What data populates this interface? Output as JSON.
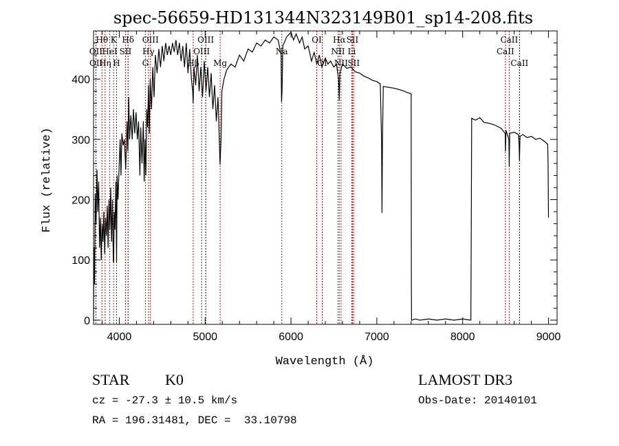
{
  "chart_data": {
    "type": "line",
    "title": "spec-56659-HD131344N323149B01_sp14-208.fits",
    "xlabel": "Wavelength (Å)",
    "ylabel": "Flux (relative)",
    "xlim": [
      3700,
      9100
    ],
    "ylim": [
      -7,
      480
    ],
    "xticks": [
      4000,
      5000,
      6000,
      7000,
      8000,
      9000
    ],
    "yticks": [
      0,
      100,
      200,
      300,
      400
    ],
    "grid": false,
    "series": [
      {
        "name": "spectrum",
        "color": "#000000",
        "points": [
          [
            3700,
            0
          ],
          [
            3705,
            120
          ],
          [
            3712,
            60
          ],
          [
            3720,
            210
          ],
          [
            3730,
            160
          ],
          [
            3740,
            250
          ],
          [
            3750,
            180
          ],
          [
            3760,
            230
          ],
          [
            3770,
            120
          ],
          [
            3780,
            170
          ],
          [
            3790,
            100
          ],
          [
            3800,
            160
          ],
          [
            3810,
            130
          ],
          [
            3820,
            180
          ],
          [
            3830,
            110
          ],
          [
            3840,
            170
          ],
          [
            3850,
            140
          ],
          [
            3860,
            190
          ],
          [
            3870,
            120
          ],
          [
            3880,
            200
          ],
          [
            3890,
            150
          ],
          [
            3900,
            220
          ],
          [
            3910,
            130
          ],
          [
            3920,
            200
          ],
          [
            3930,
            100
          ],
          [
            3935,
            95
          ],
          [
            3940,
            180
          ],
          [
            3950,
            150
          ],
          [
            3960,
            230
          ],
          [
            3968,
            95
          ],
          [
            3975,
            240
          ],
          [
            3985,
            200
          ],
          [
            4000,
            260
          ],
          [
            4010,
            300
          ],
          [
            4020,
            240
          ],
          [
            4030,
            310
          ],
          [
            4045,
            290
          ],
          [
            4060,
            300
          ],
          [
            4075,
            250
          ],
          [
            4090,
            330
          ],
          [
            4100,
            280
          ],
          [
            4110,
            370
          ],
          [
            4120,
            300
          ],
          [
            4135,
            340
          ],
          [
            4150,
            300
          ],
          [
            4165,
            350
          ],
          [
            4180,
            310
          ],
          [
            4195,
            345
          ],
          [
            4210,
            300
          ],
          [
            4225,
            330
          ],
          [
            4240,
            240
          ],
          [
            4250,
            320
          ],
          [
            4265,
            260
          ],
          [
            4280,
            330
          ],
          [
            4290,
            230
          ],
          [
            4300,
            300
          ],
          [
            4310,
            240
          ],
          [
            4320,
            350
          ],
          [
            4330,
            320
          ],
          [
            4340,
            390
          ],
          [
            4350,
            310
          ],
          [
            4360,
            400
          ],
          [
            4375,
            350
          ],
          [
            4390,
            420
          ],
          [
            4405,
            370
          ],
          [
            4420,
            440
          ],
          [
            4440,
            410
          ],
          [
            4460,
            450
          ],
          [
            4480,
            420
          ],
          [
            4500,
            455
          ],
          [
            4520,
            430
          ],
          [
            4540,
            460
          ],
          [
            4560,
            440
          ],
          [
            4580,
            455
          ],
          [
            4600,
            440
          ],
          [
            4620,
            460
          ],
          [
            4640,
            445
          ],
          [
            4660,
            465
          ],
          [
            4680,
            440
          ],
          [
            4700,
            460
          ],
          [
            4720,
            430
          ],
          [
            4740,
            455
          ],
          [
            4760,
            420
          ],
          [
            4780,
            460
          ],
          [
            4800,
            410
          ],
          [
            4820,
            450
          ],
          [
            4840,
            400
          ],
          [
            4855,
            380
          ],
          [
            4861,
            360
          ],
          [
            4870,
            420
          ],
          [
            4890,
            390
          ],
          [
            4910,
            440
          ],
          [
            4930,
            380
          ],
          [
            4950,
            420
          ],
          [
            4970,
            370
          ],
          [
            4990,
            430
          ],
          [
            5010,
            380
          ],
          [
            5030,
            420
          ],
          [
            5050,
            370
          ],
          [
            5070,
            410
          ],
          [
            5090,
            350
          ],
          [
            5110,
            390
          ],
          [
            5130,
            330
          ],
          [
            5150,
            370
          ],
          [
            5167,
            290
          ],
          [
            5173,
            258
          ],
          [
            5185,
            300
          ],
          [
            5195,
            380
          ],
          [
            5220,
            400
          ],
          [
            5250,
            415
          ],
          [
            5300,
            425
          ],
          [
            5350,
            420
          ],
          [
            5400,
            440
          ],
          [
            5450,
            430
          ],
          [
            5500,
            450
          ],
          [
            5550,
            445
          ],
          [
            5600,
            460
          ],
          [
            5650,
            455
          ],
          [
            5700,
            465
          ],
          [
            5750,
            460
          ],
          [
            5800,
            470
          ],
          [
            5850,
            465
          ],
          [
            5885,
            440
          ],
          [
            5890,
            362
          ],
          [
            5896,
            380
          ],
          [
            5905,
            455
          ],
          [
            5950,
            470
          ],
          [
            6000,
            478
          ],
          [
            6030,
            465
          ],
          [
            6060,
            475
          ],
          [
            6100,
            460
          ],
          [
            6130,
            470
          ],
          [
            6160,
            450
          ],
          [
            6200,
            455
          ],
          [
            6240,
            430
          ],
          [
            6270,
            445
          ],
          [
            6300,
            425
          ],
          [
            6330,
            440
          ],
          [
            6360,
            420
          ],
          [
            6400,
            435
          ],
          [
            6430,
            425
          ],
          [
            6460,
            430
          ],
          [
            6500,
            420
          ],
          [
            6530,
            425
          ],
          [
            6555,
            400
          ],
          [
            6563,
            365
          ],
          [
            6570,
            410
          ],
          [
            6600,
            425
          ],
          [
            6650,
            418
          ],
          [
            6700,
            420
          ],
          [
            6750,
            412
          ],
          [
            6800,
            410
          ],
          [
            6850,
            405
          ],
          [
            6900,
            402
          ],
          [
            6950,
            398
          ],
          [
            7000,
            396
          ],
          [
            7040,
            392
          ],
          [
            7055,
            300
          ],
          [
            7060,
            178
          ],
          [
            7066,
            300
          ],
          [
            7075,
            388
          ],
          [
            7150,
            386
          ],
          [
            7200,
            385
          ],
          [
            7250,
            383
          ],
          [
            7300,
            381
          ],
          [
            7350,
            378
          ],
          [
            7395,
            376
          ],
          [
            7400,
            376
          ],
          [
            7402,
            60
          ],
          [
            7405,
            0
          ],
          [
            7450,
            2
          ],
          [
            7500,
            0
          ],
          [
            7600,
            2
          ],
          [
            7700,
            0
          ],
          [
            7800,
            2
          ],
          [
            7900,
            0
          ],
          [
            8000,
            2
          ],
          [
            8095,
            0
          ],
          [
            8100,
            150
          ],
          [
            8105,
            335
          ],
          [
            8150,
            332
          ],
          [
            8200,
            336
          ],
          [
            8250,
            328
          ],
          [
            8300,
            327
          ],
          [
            8350,
            325
          ],
          [
            8400,
            322
          ],
          [
            8450,
            318
          ],
          [
            8495,
            310
          ],
          [
            8498,
            280
          ],
          [
            8505,
            315
          ],
          [
            8538,
            300
          ],
          [
            8542,
            255
          ],
          [
            8548,
            310
          ],
          [
            8600,
            312
          ],
          [
            8650,
            308
          ],
          [
            8658,
            290
          ],
          [
            8662,
            265
          ],
          [
            8668,
            305
          ],
          [
            8700,
            308
          ],
          [
            8750,
            303
          ],
          [
            8800,
            305
          ],
          [
            8850,
            300
          ],
          [
            8900,
            302
          ],
          [
            8950,
            297
          ],
          [
            8990,
            292
          ],
          [
            8995,
            260
          ],
          [
            9000,
            170
          ]
        ]
      }
    ],
    "line_markers": [
      {
        "label": "Hθ",
        "wavelength": 3798,
        "color": "#cc0000"
      },
      {
        "label": "OII",
        "wavelength": 3727,
        "color": "#cc0000"
      },
      {
        "label": "OII",
        "wavelength": 3729,
        "color": "#cc0000"
      },
      {
        "label": "K",
        "wavelength": 3934,
        "color": "#cc0000"
      },
      {
        "label": "HeI",
        "wavelength": 3889,
        "color": "#cc0000"
      },
      {
        "label": "Hη",
        "wavelength": 3835,
        "color": "#cc0000"
      },
      {
        "label": "Hδ",
        "wavelength": 4102,
        "color": "#000000"
      },
      {
        "label": "SII",
        "wavelength": 4072,
        "color": "#cc0000"
      },
      {
        "label": "H",
        "wavelength": 3968,
        "color": "#cc0000"
      },
      {
        "label": "OIII",
        "wavelength": 4363,
        "color": "#cc0000"
      },
      {
        "label": "Hγ",
        "wavelength": 4340,
        "color": "#cc0000"
      },
      {
        "label": "G",
        "wavelength": 4304,
        "color": "#cc0000"
      },
      {
        "label": "OIII",
        "wavelength": 5007,
        "color": "#000000"
      },
      {
        "label": "OIII",
        "wavelength": 4959,
        "color": "#cc0000"
      },
      {
        "label": "Hβ",
        "wavelength": 4861,
        "color": "#cc0000"
      },
      {
        "label": "Mg",
        "wavelength": 5175,
        "color": "#cc0000"
      },
      {
        "label": "Na",
        "wavelength": 5893,
        "color": "#cc0000"
      },
      {
        "label": "OI",
        "wavelength": 6300,
        "color": "#cc0000"
      },
      {
        "label": "OI",
        "wavelength": 6364,
        "color": "#cc0000"
      },
      {
        "label": "Hα",
        "wavelength": 6563,
        "color": "#cc0000"
      },
      {
        "label": "SII",
        "wavelength": 6716,
        "color": "#cc0000"
      },
      {
        "label": "NII",
        "wavelength": 6548,
        "color": "#cc0000"
      },
      {
        "label": "Li",
        "wavelength": 6708,
        "color": "#cc0000"
      },
      {
        "label": "NII",
        "wavelength": 6583,
        "color": "#cc0000"
      },
      {
        "label": "SII",
        "wavelength": 6731,
        "color": "#cc0000"
      },
      {
        "label": "CaII",
        "wavelength": 8542,
        "color": "#cc0000"
      },
      {
        "label": "CaII",
        "wavelength": 8498,
        "color": "#cc0000"
      },
      {
        "label": "CaII",
        "wavelength": 8662,
        "color": "#000000"
      }
    ]
  },
  "info": {
    "object_type": "STAR",
    "subclass": "K0",
    "cz": "cz = -27.3 ± 10.5 km/s",
    "coords": "RA = 196.31481, DEC =  33.10798",
    "survey": "LAMOST DR3",
    "obs_date": "Obs-Date: 20140101"
  }
}
